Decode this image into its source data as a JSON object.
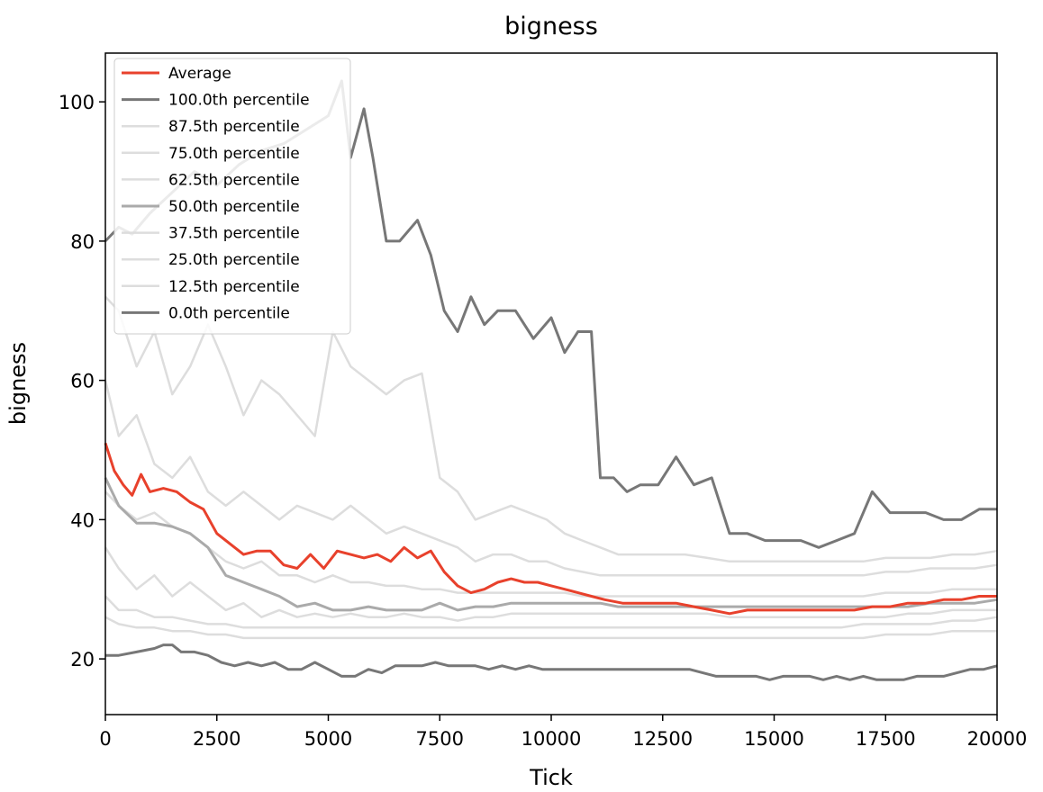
{
  "chart_data": {
    "type": "line",
    "title": "bigness",
    "xlabel": "Tick",
    "ylabel": "bigness",
    "xlim": [
      0,
      20000
    ],
    "ylim": [
      12,
      107
    ],
    "xticks": [
      0,
      2500,
      5000,
      7500,
      10000,
      12500,
      15000,
      17500,
      20000
    ],
    "yticks": [
      20,
      40,
      60,
      80,
      100
    ],
    "grid": false,
    "legend_position": "upper-left",
    "series": [
      {
        "name": "Average",
        "color": "#e8412c",
        "linewidth": 3,
        "x": [
          0,
          200,
          400,
          600,
          800,
          1000,
          1300,
          1600,
          1900,
          2200,
          2500,
          2800,
          3100,
          3400,
          3700,
          4000,
          4300,
          4600,
          4900,
          5200,
          5500,
          5800,
          6100,
          6400,
          6700,
          7000,
          7300,
          7600,
          7900,
          8200,
          8500,
          8800,
          9100,
          9400,
          9700,
          10000,
          10300,
          10600,
          10900,
          11200,
          11600,
          12000,
          12400,
          12800,
          13200,
          13600,
          14000,
          14400,
          14800,
          15200,
          15600,
          16000,
          16400,
          16800,
          17200,
          17600,
          18000,
          18400,
          18800,
          19200,
          19600,
          20000
        ],
        "values": [
          51,
          47,
          45,
          43.5,
          46.5,
          44,
          44.5,
          44,
          42.5,
          41.5,
          38,
          36.5,
          35,
          35.5,
          35.5,
          33.5,
          33,
          35,
          33,
          35.5,
          35,
          34.5,
          35,
          34,
          36,
          34.5,
          35.5,
          32.5,
          30.5,
          29.5,
          30,
          31,
          31.5,
          31,
          31,
          30.5,
          30,
          29.5,
          29,
          28.5,
          28,
          28,
          28,
          28,
          27.5,
          27,
          26.5,
          27,
          27,
          27,
          27,
          27,
          27,
          27,
          27.5,
          27.5,
          28,
          28,
          28.5,
          28.5,
          29,
          29
        ]
      },
      {
        "name": "100.0th percentile",
        "color": "#777777",
        "linewidth": 3,
        "x": [
          0,
          300,
          600,
          1000,
          1500,
          2000,
          2500,
          3000,
          3500,
          4000,
          4500,
          5000,
          5300,
          5500,
          5800,
          6000,
          6300,
          6600,
          7000,
          7300,
          7600,
          7900,
          8200,
          8500,
          8800,
          9200,
          9600,
          10000,
          10300,
          10600,
          10900,
          11100,
          11400,
          11700,
          12000,
          12400,
          12800,
          13200,
          13600,
          14000,
          14400,
          14800,
          15200,
          15600,
          16000,
          16400,
          16800,
          17200,
          17600,
          18000,
          18400,
          18800,
          19200,
          19600,
          20000
        ],
        "values": [
          80,
          82,
          81,
          84,
          87,
          90,
          88,
          91,
          93,
          94,
          96,
          98,
          103,
          92,
          99,
          92,
          80,
          80,
          83,
          78,
          70,
          67,
          72,
          68,
          70,
          70,
          66,
          69,
          64,
          67,
          67,
          46,
          46,
          44,
          45,
          45,
          49,
          45,
          46,
          38,
          38,
          37,
          37,
          37,
          36,
          37,
          38,
          44,
          41,
          41,
          41,
          40,
          40,
          41.5,
          41.5
        ]
      },
      {
        "name": "87.5th percentile",
        "color": "#dddddd",
        "linewidth": 2.5,
        "x": [
          0,
          300,
          700,
          1100,
          1500,
          1900,
          2300,
          2700,
          3100,
          3500,
          3900,
          4300,
          4700,
          5100,
          5500,
          5900,
          6300,
          6700,
          7100,
          7500,
          7900,
          8300,
          8700,
          9100,
          9500,
          9900,
          10300,
          10700,
          11100,
          11500,
          12000,
          12500,
          13000,
          13500,
          14000,
          14500,
          15000,
          15500,
          16000,
          16500,
          17000,
          17500,
          18000,
          18500,
          19000,
          19500,
          20000
        ],
        "values": [
          72,
          70,
          62,
          67,
          58,
          62,
          68,
          62,
          55,
          60,
          58,
          55,
          52,
          67,
          62,
          60,
          58,
          60,
          61,
          46,
          44,
          40,
          41,
          42,
          41,
          40,
          38,
          37,
          36,
          35,
          35,
          35,
          35,
          34.5,
          34,
          34,
          34,
          34,
          34,
          34,
          34,
          34.5,
          34.5,
          34.5,
          35,
          35,
          35.5
        ]
      },
      {
        "name": "75.0th percentile",
        "color": "#dddddd",
        "linewidth": 2.5,
        "x": [
          0,
          300,
          700,
          1100,
          1500,
          1900,
          2300,
          2700,
          3100,
          3500,
          3900,
          4300,
          4700,
          5100,
          5500,
          5900,
          6300,
          6700,
          7100,
          7500,
          7900,
          8300,
          8700,
          9100,
          9500,
          9900,
          10300,
          10700,
          11100,
          11500,
          12000,
          12500,
          13000,
          13500,
          14000,
          14500,
          15000,
          15500,
          16000,
          16500,
          17000,
          17500,
          18000,
          18500,
          19000,
          19500,
          20000
        ],
        "values": [
          60,
          52,
          55,
          48,
          46,
          49,
          44,
          42,
          44,
          42,
          40,
          42,
          41,
          40,
          42,
          40,
          38,
          39,
          38,
          37,
          36,
          34,
          35,
          35,
          34,
          34,
          33,
          32.5,
          32,
          32,
          32,
          32,
          32,
          32,
          32,
          32,
          32,
          32,
          32,
          32,
          32,
          32.5,
          32.5,
          33,
          33,
          33,
          33.5
        ]
      },
      {
        "name": "62.5th percentile",
        "color": "#dddddd",
        "linewidth": 2.5,
        "x": [
          0,
          300,
          700,
          1100,
          1500,
          1900,
          2300,
          2700,
          3100,
          3500,
          3900,
          4300,
          4700,
          5100,
          5500,
          5900,
          6300,
          6700,
          7100,
          7500,
          7900,
          8300,
          8700,
          9100,
          9500,
          9900,
          10300,
          10700,
          11100,
          11500,
          12000,
          12500,
          13000,
          13500,
          14000,
          14500,
          15000,
          15500,
          16000,
          16500,
          17000,
          17500,
          18000,
          18500,
          19000,
          19500,
          20000
        ],
        "values": [
          44,
          42,
          40,
          41,
          39,
          38,
          36,
          34,
          33,
          34,
          32,
          32,
          31,
          32,
          31,
          31,
          30.5,
          30.5,
          30,
          30,
          29.5,
          29.5,
          29.5,
          29.5,
          29.5,
          29.5,
          29.5,
          29,
          29,
          29,
          29,
          29,
          29,
          29,
          29,
          29,
          29,
          29,
          29,
          29,
          29,
          29.5,
          29.5,
          29.5,
          30,
          30,
          30
        ]
      },
      {
        "name": "50.0th percentile",
        "color": "#aaaaaa",
        "linewidth": 3,
        "x": [
          0,
          300,
          700,
          1100,
          1500,
          1900,
          2300,
          2700,
          3100,
          3500,
          3900,
          4300,
          4700,
          5100,
          5500,
          5900,
          6300,
          6700,
          7100,
          7500,
          7900,
          8300,
          8700,
          9100,
          9500,
          9900,
          10300,
          10700,
          11100,
          11500,
          12000,
          12500,
          13000,
          13500,
          14000,
          14500,
          15000,
          15500,
          16000,
          16500,
          17000,
          17500,
          18000,
          18500,
          19000,
          19500,
          20000
        ],
        "values": [
          46,
          42,
          39.5,
          39.5,
          39,
          38,
          36,
          32,
          31,
          30,
          29,
          27.5,
          28,
          27,
          27,
          27.5,
          27,
          27,
          27,
          28,
          27,
          27.5,
          27.5,
          28,
          28,
          28,
          28,
          28,
          28,
          27.5,
          27.5,
          27.5,
          27.5,
          27.5,
          27.5,
          27.5,
          27.5,
          27.5,
          27.5,
          27.5,
          27.5,
          27.5,
          27.5,
          28,
          28,
          28,
          28.5
        ]
      },
      {
        "name": "37.5th percentile",
        "color": "#dddddd",
        "linewidth": 2.5,
        "x": [
          0,
          300,
          700,
          1100,
          1500,
          1900,
          2300,
          2700,
          3100,
          3500,
          3900,
          4300,
          4700,
          5100,
          5500,
          5900,
          6300,
          6700,
          7100,
          7500,
          7900,
          8300,
          8700,
          9100,
          9500,
          9900,
          10300,
          10700,
          11100,
          11500,
          12000,
          12500,
          13000,
          13500,
          14000,
          14500,
          15000,
          15500,
          16000,
          16500,
          17000,
          17500,
          18000,
          18500,
          19000,
          19500,
          20000
        ],
        "values": [
          36,
          33,
          30,
          32,
          29,
          31,
          29,
          27,
          28,
          26,
          27,
          26,
          26.5,
          26,
          26.5,
          26,
          26,
          26.5,
          26,
          26,
          25.5,
          26,
          26,
          26.5,
          26.5,
          26.5,
          26.5,
          26.5,
          26.5,
          26.5,
          26.5,
          26.5,
          26.5,
          26.5,
          26,
          26,
          26,
          26,
          26,
          26,
          26,
          26,
          26.5,
          26.5,
          27,
          27,
          27
        ]
      },
      {
        "name": "25.0th percentile",
        "color": "#dddddd",
        "linewidth": 2.5,
        "x": [
          0,
          300,
          700,
          1100,
          1500,
          1900,
          2300,
          2700,
          3100,
          3500,
          3900,
          4300,
          4700,
          5100,
          5500,
          5900,
          6300,
          6700,
          7100,
          7500,
          7900,
          8300,
          8700,
          9100,
          9500,
          9900,
          10300,
          10700,
          11100,
          11500,
          12000,
          12500,
          13000,
          13500,
          14000,
          14500,
          15000,
          15500,
          16000,
          16500,
          17000,
          17500,
          18000,
          18500,
          19000,
          19500,
          20000
        ],
        "values": [
          29,
          27,
          27,
          26,
          26,
          25.5,
          25,
          25,
          24.5,
          24.5,
          24.5,
          24.5,
          24.5,
          24.5,
          24.5,
          24.5,
          24.5,
          24.5,
          24.5,
          24.5,
          24.5,
          24.5,
          24.5,
          24.5,
          24.5,
          24.5,
          24.5,
          24.5,
          24.5,
          24.5,
          24.5,
          24.5,
          24.5,
          24.5,
          24.5,
          24.5,
          24.5,
          24.5,
          24.5,
          24.5,
          25,
          25,
          25,
          25,
          25.5,
          25.5,
          26
        ]
      },
      {
        "name": "12.5th percentile",
        "color": "#dddddd",
        "linewidth": 2.5,
        "x": [
          0,
          300,
          700,
          1100,
          1500,
          1900,
          2300,
          2700,
          3100,
          3500,
          3900,
          4300,
          4700,
          5100,
          5500,
          5900,
          6300,
          6700,
          7100,
          7500,
          7900,
          8300,
          8700,
          9100,
          9500,
          9900,
          10300,
          10700,
          11100,
          11500,
          12000,
          12500,
          13000,
          13500,
          14000,
          14500,
          15000,
          15500,
          16000,
          16500,
          17000,
          17500,
          18000,
          18500,
          19000,
          19500,
          20000
        ],
        "values": [
          26,
          25,
          24.5,
          24.5,
          24,
          24,
          23.5,
          23.5,
          23,
          23,
          23,
          23,
          23,
          23,
          23,
          23,
          23,
          23,
          23,
          23,
          23,
          23,
          23,
          23,
          23,
          23,
          23,
          23,
          23,
          23,
          23,
          23,
          23,
          23,
          23,
          23,
          23,
          23,
          23,
          23,
          23,
          23.5,
          23.5,
          23.5,
          24,
          24,
          24
        ]
      },
      {
        "name": "0.0th percentile",
        "color": "#777777",
        "linewidth": 3,
        "x": [
          0,
          300,
          700,
          1100,
          1300,
          1500,
          1700,
          2000,
          2300,
          2600,
          2900,
          3200,
          3500,
          3800,
          4100,
          4400,
          4700,
          5000,
          5300,
          5600,
          5900,
          6200,
          6500,
          6800,
          7100,
          7400,
          7700,
          8000,
          8300,
          8600,
          8900,
          9200,
          9500,
          9800,
          10100,
          10400,
          10700,
          11000,
          11300,
          11600,
          11900,
          12200,
          12500,
          12800,
          13100,
          13400,
          13700,
          14000,
          14300,
          14600,
          14900,
          15200,
          15500,
          15800,
          16100,
          16400,
          16700,
          17000,
          17300,
          17600,
          17900,
          18200,
          18500,
          18800,
          19100,
          19400,
          19700,
          20000
        ],
        "values": [
          20.5,
          20.5,
          21,
          21.5,
          22,
          22,
          21,
          21,
          20.5,
          19.5,
          19,
          19.5,
          19,
          19.5,
          18.5,
          18.5,
          19.5,
          18.5,
          17.5,
          17.5,
          18.5,
          18,
          19,
          19,
          19,
          19.5,
          19,
          19,
          19,
          18.5,
          19,
          18.5,
          19,
          18.5,
          18.5,
          18.5,
          18.5,
          18.5,
          18.5,
          18.5,
          18.5,
          18.5,
          18.5,
          18.5,
          18.5,
          18,
          17.5,
          17.5,
          17.5,
          17.5,
          17,
          17.5,
          17.5,
          17.5,
          17,
          17.5,
          17,
          17.5,
          17,
          17,
          17,
          17.5,
          17.5,
          17.5,
          18,
          18.5,
          18.5,
          19
        ]
      }
    ]
  }
}
